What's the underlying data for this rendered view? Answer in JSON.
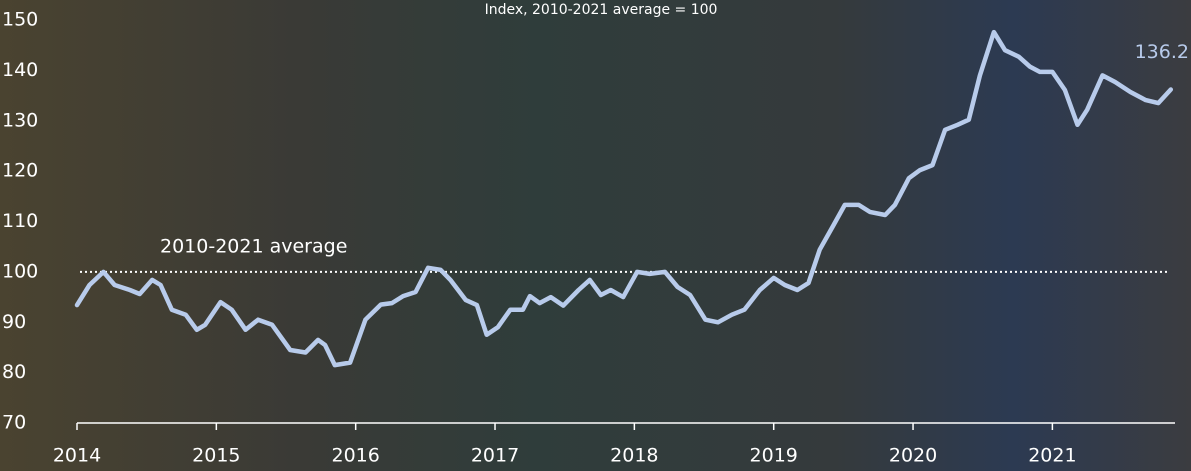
{
  "chart_data": {
    "type": "line",
    "subtitle": "Index, 2010-2021 average = 100",
    "reference": {
      "value": 100,
      "label": "2010-2021 average"
    },
    "x": [
      2014.0,
      2014.09,
      2014.19,
      2014.27,
      2014.38,
      2014.45,
      2014.54,
      2014.6,
      2014.68,
      2014.78,
      2014.86,
      2014.92,
      2015.03,
      2015.11,
      2015.21,
      2015.3,
      2015.4,
      2015.53,
      2015.64,
      2015.73,
      2015.78,
      2015.85,
      2015.96,
      2016.07,
      2016.18,
      2016.26,
      2016.34,
      2016.43,
      2016.52,
      2016.61,
      2016.68,
      2016.79,
      2016.87,
      2016.94,
      2017.02,
      2017.11,
      2017.2,
      2017.25,
      2017.32,
      2017.4,
      2017.49,
      2017.6,
      2017.68,
      2017.76,
      2017.83,
      2017.92,
      2018.02,
      2018.11,
      2018.22,
      2018.31,
      2018.4,
      2018.51,
      2018.6,
      2018.7,
      2018.79,
      2018.9,
      2019.0,
      2019.08,
      2019.17,
      2019.25,
      2019.33,
      2019.43,
      2019.51,
      2019.61,
      2019.69,
      2019.8,
      2019.87,
      2019.97,
      2020.05,
      2020.14,
      2020.23,
      2020.32,
      2020.4,
      2020.48,
      2020.58,
      2020.66,
      2020.76,
      2020.84,
      2020.91,
      2021.0,
      2021.09,
      2021.18,
      2021.25,
      2021.36,
      2021.45,
      2021.56,
      2021.67,
      2021.76,
      2021.85
    ],
    "series": [
      {
        "name": "Index",
        "color": "#b8cbeb",
        "values": [
          93.4,
          97.4,
          100.0,
          97.4,
          96.4,
          95.6,
          98.4,
          97.4,
          92.5,
          91.5,
          88.5,
          89.5,
          94.0,
          92.5,
          88.5,
          90.5,
          89.5,
          84.5,
          84.0,
          86.5,
          85.5,
          81.5,
          82.0,
          90.5,
          93.5,
          93.8,
          95.2,
          96.0,
          100.8,
          100.4,
          98.4,
          94.4,
          93.4,
          87.5,
          89.0,
          92.5,
          92.5,
          95.2,
          93.8,
          95.0,
          93.3,
          96.4,
          98.4,
          95.4,
          96.4,
          95.0,
          100.0,
          99.6,
          100.0,
          97.0,
          95.4,
          90.5,
          90.0,
          91.5,
          92.5,
          96.4,
          98.8,
          97.4,
          96.4,
          97.8,
          104.4,
          109.3,
          113.3,
          113.3,
          111.9,
          111.3,
          113.3,
          118.6,
          120.2,
          121.2,
          128.2,
          129.2,
          130.2,
          139.0,
          147.6,
          144.0,
          142.7,
          140.7,
          139.7,
          139.7,
          136.1,
          129.2,
          132.2,
          139.0,
          137.7,
          135.7,
          134.1,
          133.5,
          136.2
        ]
      }
    ],
    "xlim": [
      2014,
      2021.88
    ],
    "xticks": [
      2014,
      2015,
      2016,
      2017,
      2018,
      2019,
      2020,
      2021
    ],
    "ylim": [
      70,
      150
    ],
    "yticks": [
      70,
      80,
      90,
      100,
      110,
      120,
      130,
      140,
      150
    ]
  }
}
